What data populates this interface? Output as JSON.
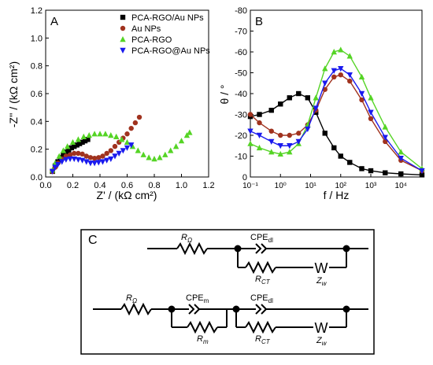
{
  "chart_data": [
    {
      "panel": "A",
      "type": "scatter",
      "title": "",
      "xlabel": "Z' / (kΩ cm²)",
      "ylabel": "-Z'' / (kΩ cm²)",
      "xlim": [
        0,
        1.2
      ],
      "ylim": [
        0,
        1.2
      ],
      "xticks": [
        "0.0",
        "0.2",
        "0.4",
        "0.6",
        "0.8",
        "1.0",
        "1.2"
      ],
      "yticks": [
        "0.0",
        "0.2",
        "0.4",
        "0.6",
        "0.8",
        "1.0",
        "1.2"
      ],
      "legend_position": "top-right",
      "series": [
        {
          "name": "PCA-RGO/Au NPs",
          "color": "#000000",
          "marker": "square",
          "x": [
            0.05,
            0.07,
            0.09,
            0.11,
            0.13,
            0.15,
            0.17,
            0.19,
            0.21,
            0.23,
            0.25,
            0.27,
            0.29,
            0.31
          ],
          "y": [
            0.04,
            0.08,
            0.11,
            0.14,
            0.16,
            0.18,
            0.19,
            0.21,
            0.22,
            0.23,
            0.24,
            0.25,
            0.26,
            0.27
          ]
        },
        {
          "name": "Au NPs",
          "color": "#a0321e",
          "marker": "circle",
          "x": [
            0.05,
            0.07,
            0.09,
            0.12,
            0.15,
            0.18,
            0.21,
            0.24,
            0.27,
            0.3,
            0.33,
            0.36,
            0.39,
            0.42,
            0.45,
            0.48,
            0.51,
            0.54,
            0.57,
            0.6,
            0.63,
            0.66,
            0.69
          ],
          "y": [
            0.04,
            0.07,
            0.1,
            0.13,
            0.15,
            0.16,
            0.17,
            0.17,
            0.165,
            0.15,
            0.14,
            0.135,
            0.14,
            0.15,
            0.17,
            0.19,
            0.22,
            0.25,
            0.28,
            0.31,
            0.35,
            0.39,
            0.43
          ]
        },
        {
          "name": "PCA-RGO",
          "color": "#55d425",
          "marker": "triangle-up",
          "x": [
            0.05,
            0.07,
            0.1,
            0.13,
            0.16,
            0.2,
            0.24,
            0.28,
            0.32,
            0.36,
            0.4,
            0.44,
            0.48,
            0.52,
            0.56,
            0.6,
            0.64,
            0.68,
            0.72,
            0.76,
            0.8,
            0.84,
            0.88,
            0.92,
            0.96,
            1.0,
            1.04,
            1.06
          ],
          "y": [
            0.05,
            0.1,
            0.15,
            0.19,
            0.22,
            0.25,
            0.27,
            0.29,
            0.3,
            0.31,
            0.31,
            0.31,
            0.3,
            0.29,
            0.27,
            0.25,
            0.22,
            0.19,
            0.16,
            0.14,
            0.13,
            0.14,
            0.16,
            0.19,
            0.22,
            0.26,
            0.3,
            0.32
          ]
        },
        {
          "name": "PCA-RGO@Au NPs",
          "color": "#1a1aee",
          "marker": "triangle-down",
          "x": [
            0.05,
            0.07,
            0.09,
            0.12,
            0.15,
            0.18,
            0.21,
            0.24,
            0.27,
            0.3,
            0.33,
            0.36,
            0.39,
            0.42,
            0.45,
            0.48,
            0.51,
            0.54,
            0.57,
            0.6,
            0.63
          ],
          "y": [
            0.04,
            0.07,
            0.09,
            0.11,
            0.125,
            0.13,
            0.13,
            0.125,
            0.12,
            0.11,
            0.1,
            0.1,
            0.105,
            0.11,
            0.12,
            0.13,
            0.15,
            0.17,
            0.19,
            0.21,
            0.23
          ]
        }
      ]
    },
    {
      "panel": "B",
      "type": "line",
      "title": "",
      "xlabel": "f / Hz",
      "ylabel": "θ / °",
      "x_scale": "log",
      "xlim": [
        0.1,
        50000
      ],
      "ylim": [
        0,
        -80
      ],
      "xticks": [
        "10⁻¹",
        "10⁰",
        "10¹",
        "10²",
        "10³",
        "10⁴"
      ],
      "yticks": [
        "-80",
        "-70",
        "-60",
        "-50",
        "-40",
        "-30",
        "-20",
        "-10",
        "0"
      ],
      "series": [
        {
          "name": "PCA-RGO/Au NPs",
          "color": "#000000",
          "marker": "square",
          "x": [
            0.1,
            0.2,
            0.5,
            1,
            2,
            4,
            8,
            15,
            30,
            60,
            100,
            200,
            500,
            1000,
            3000,
            10000,
            50000
          ],
          "y": [
            -29,
            -30,
            -32,
            -35,
            -38,
            -40,
            -38,
            -31,
            -21,
            -14,
            -10,
            -7,
            -4,
            -3,
            -2,
            -1.5,
            -1
          ]
        },
        {
          "name": "Au NPs",
          "color": "#a0321e",
          "marker": "circle",
          "x": [
            0.1,
            0.2,
            0.5,
            1,
            2,
            4,
            8,
            15,
            30,
            60,
            100,
            200,
            500,
            1000,
            3000,
            10000,
            50000
          ],
          "y": [
            -30,
            -26,
            -22,
            -20,
            -20,
            -21,
            -25,
            -32,
            -42,
            -48,
            -49,
            -46,
            -37,
            -28,
            -17,
            -8,
            -3
          ]
        },
        {
          "name": "PCA-RGO",
          "color": "#55d425",
          "marker": "triangle-up",
          "x": [
            0.1,
            0.2,
            0.5,
            1,
            2,
            4,
            8,
            15,
            30,
            60,
            100,
            200,
            500,
            1000,
            3000,
            10000,
            50000
          ],
          "y": [
            -16,
            -14,
            -12,
            -11,
            -12,
            -16,
            -25,
            -38,
            -52,
            -60,
            -61,
            -58,
            -48,
            -38,
            -24,
            -12,
            -4
          ]
        },
        {
          "name": "PCA-RGO@Au NPs",
          "color": "#1a1aee",
          "marker": "triangle-down",
          "x": [
            0.1,
            0.2,
            0.5,
            1,
            2,
            4,
            8,
            15,
            30,
            60,
            100,
            200,
            500,
            1000,
            3000,
            10000,
            50000
          ],
          "y": [
            -22,
            -20,
            -17,
            -15,
            -15,
            -17,
            -23,
            -33,
            -45,
            -51,
            -52,
            -49,
            -40,
            -31,
            -19,
            -9,
            -3
          ]
        }
      ]
    }
  ],
  "panels": {
    "a": "A",
    "b": "B",
    "c": "C"
  },
  "circuit": {
    "r_omega": {
      "base": "R",
      "sub": "Ω"
    },
    "cpe_dl": {
      "base": "CPE",
      "sub": "dl"
    },
    "cpe_m": {
      "base": "CPE",
      "sub": "m"
    },
    "r_ct": {
      "base": "R",
      "sub": "CT"
    },
    "r_m": {
      "base": "R",
      "sub": "m"
    },
    "z_w": {
      "base": "Z",
      "sub": "w"
    },
    "warburg_symbol": "W"
  }
}
